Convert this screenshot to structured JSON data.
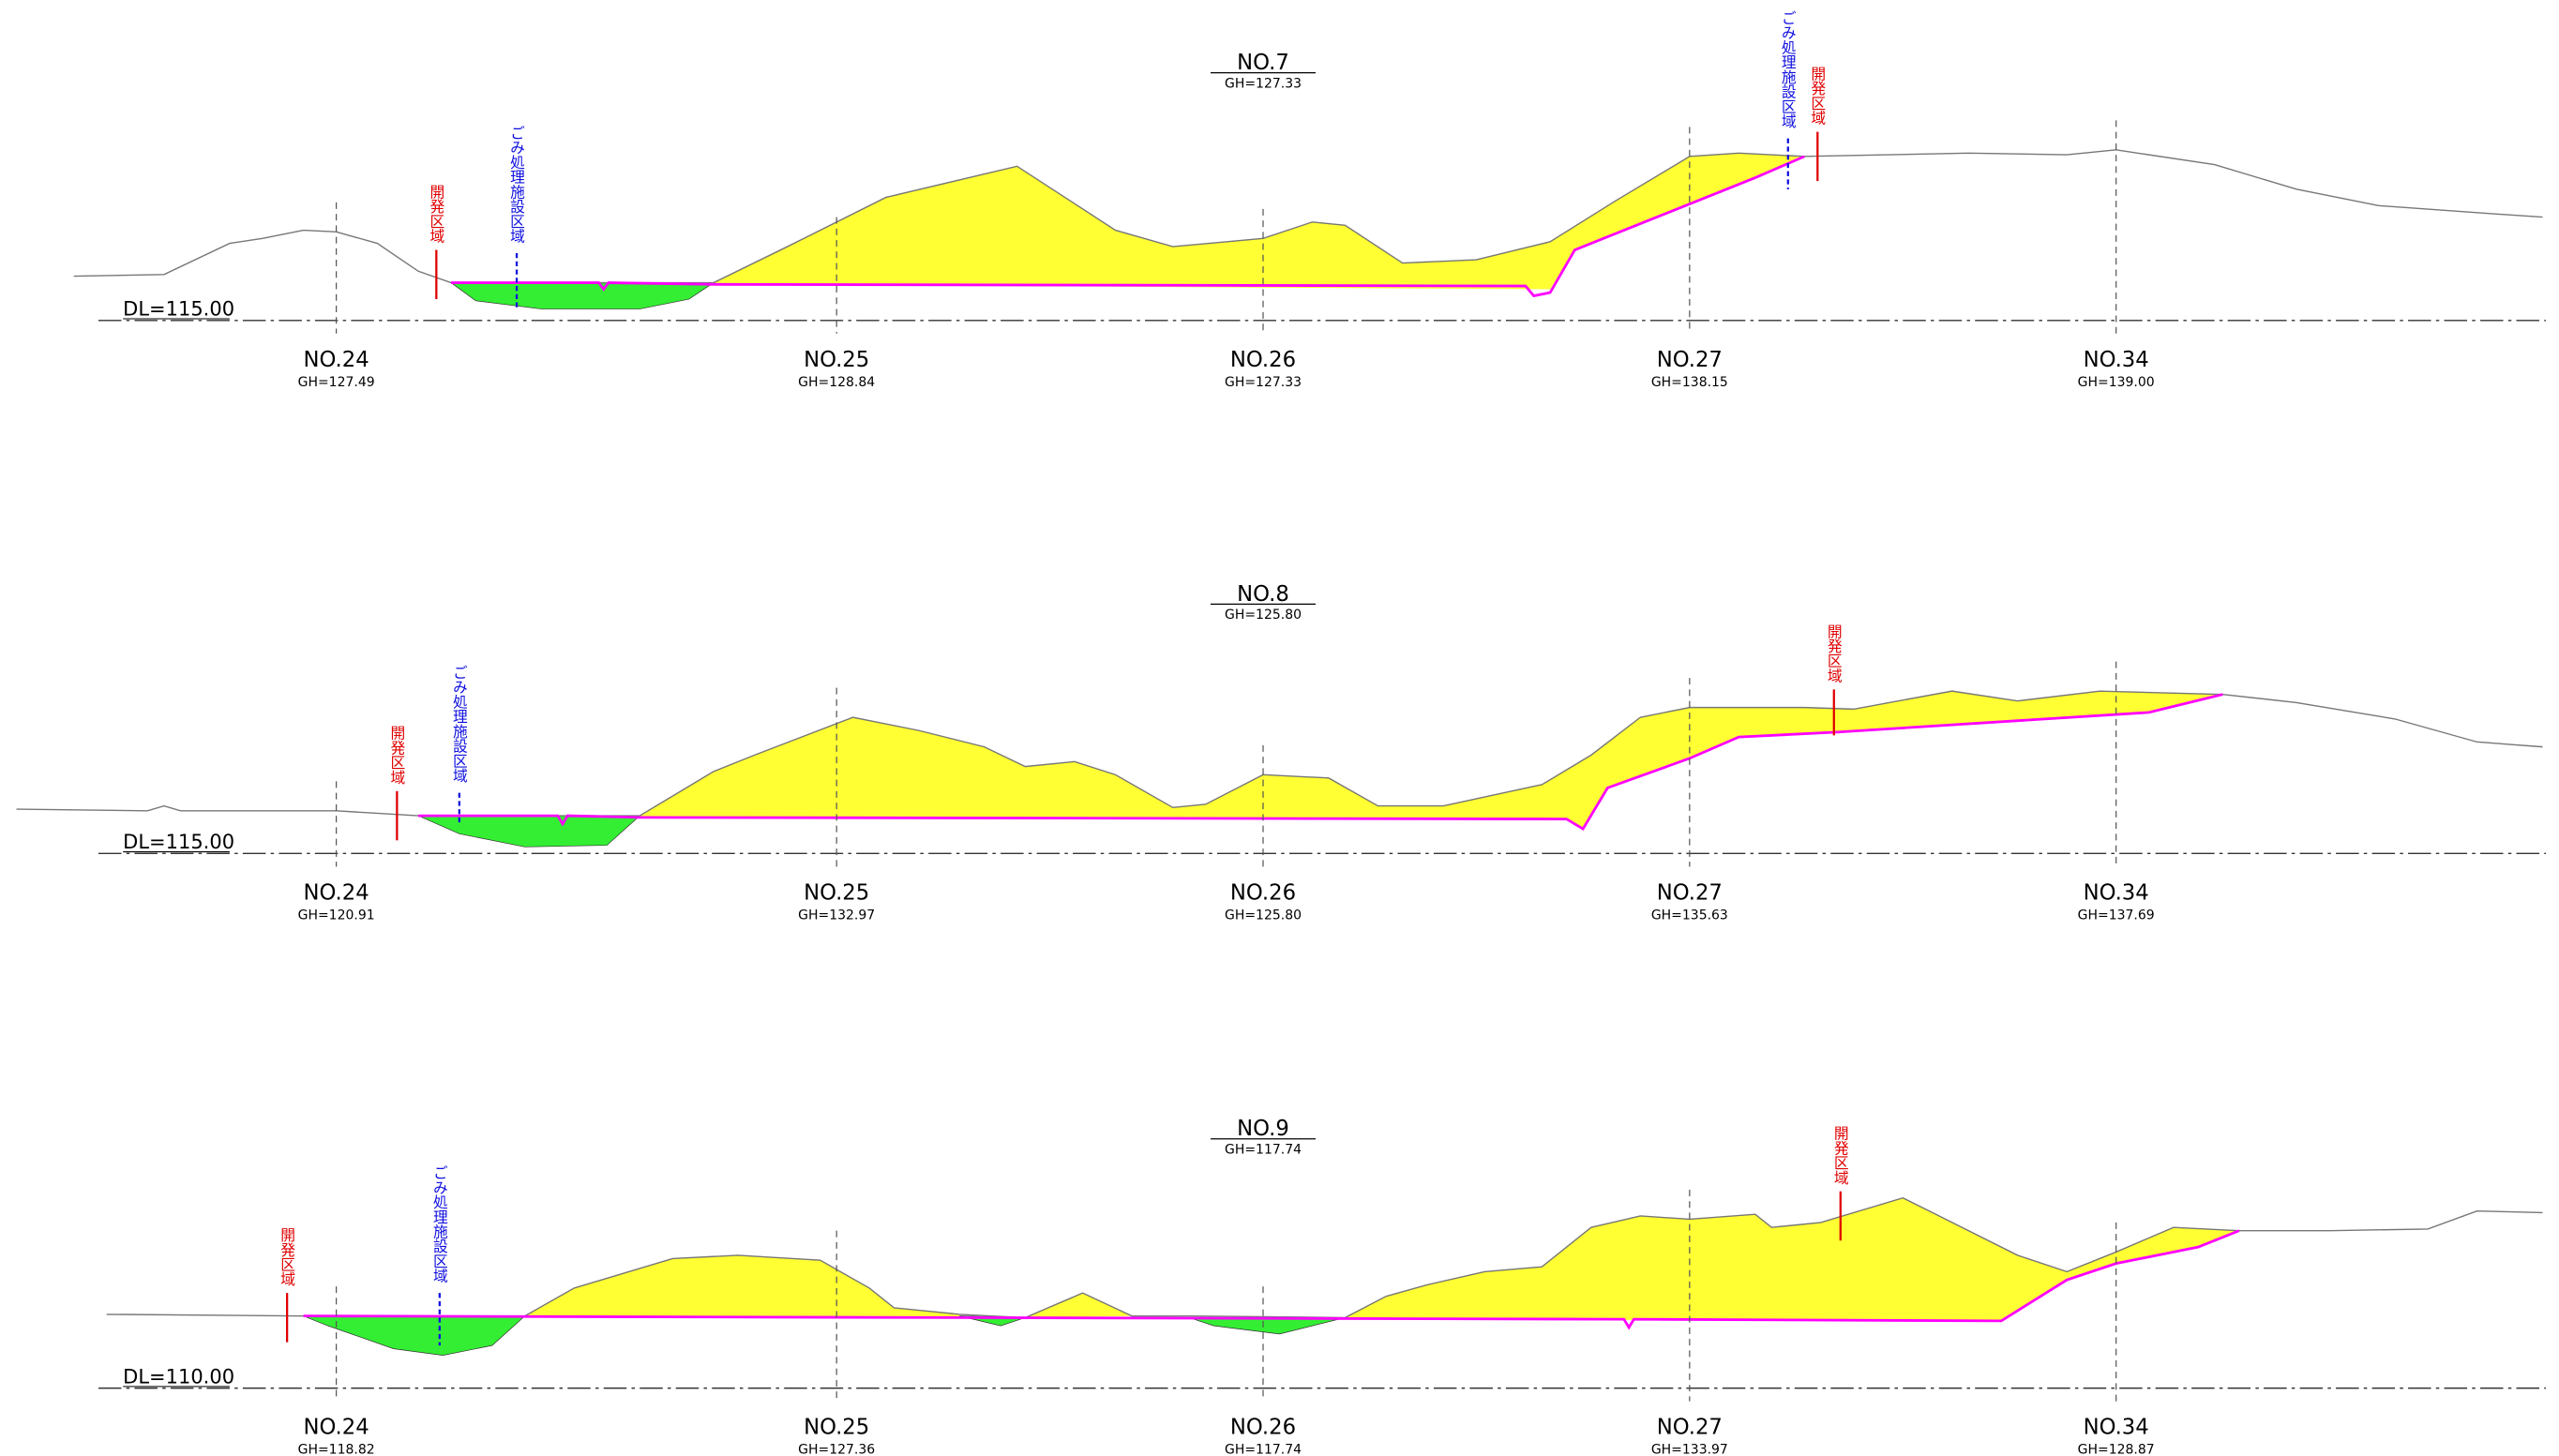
{
  "sections": [
    {
      "title": "NO.7",
      "gh": "GH=127.33",
      "dl": "DL=115.00",
      "stations": [
        {
          "name": "NO.24",
          "gh": "GH=127.49"
        },
        {
          "name": "NO.25",
          "gh": "GH=128.84"
        },
        {
          "name": "NO.26",
          "gh": "GH=127.33"
        },
        {
          "name": "NO.27",
          "gh": "GH=138.15"
        },
        {
          "name": "NO.34",
          "gh": "GH=139.00"
        }
      ],
      "labels": [
        "開発区域",
        "ごみ処理施設区域",
        "ごみ処理施設区域",
        "開発区域"
      ]
    },
    {
      "title": "NO.8",
      "gh": "GH=125.80",
      "dl": "DL=115.00",
      "stations": [
        {
          "name": "NO.24",
          "gh": "GH=120.91"
        },
        {
          "name": "NO.25",
          "gh": "GH=132.97"
        },
        {
          "name": "NO.26",
          "gh": "GH=125.80"
        },
        {
          "name": "NO.27",
          "gh": "GH=135.63"
        },
        {
          "name": "NO.34",
          "gh": "GH=137.69"
        }
      ],
      "labels": [
        "開発区域",
        "ごみ処理施設区域",
        "開発区域"
      ]
    },
    {
      "title": "NO.9",
      "gh": "GH=117.74",
      "dl": "DL=110.00",
      "stations": [
        {
          "name": "NO.24",
          "gh": "GH=118.82"
        },
        {
          "name": "NO.25",
          "gh": "GH=127.36"
        },
        {
          "name": "NO.26",
          "gh": "GH=117.74"
        },
        {
          "name": "NO.27",
          "gh": "GH=133.97"
        },
        {
          "name": "NO.34",
          "gh": "GH=128.87"
        }
      ],
      "labels": [
        "開発区域",
        "ごみ処理施設区域",
        "開発区域"
      ]
    }
  ]
}
